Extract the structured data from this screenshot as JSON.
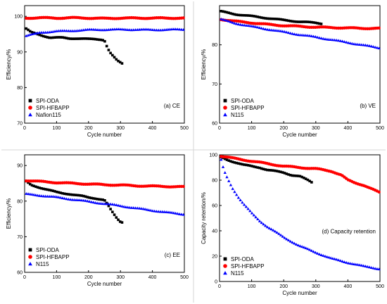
{
  "colors": {
    "series": [
      "#000000",
      "#ff0000",
      "#0000ff"
    ]
  },
  "chart_data": [
    {
      "type": "scatter",
      "annotation": "(a) CE",
      "xlabel": "Cycle number",
      "ylabel": "Efficiency/%",
      "xlim": [
        0,
        500
      ],
      "ylim": [
        70,
        103
      ],
      "xticks": [
        0,
        100,
        200,
        300,
        400,
        500
      ],
      "yticks": [
        70,
        80,
        90,
        100
      ],
      "legend_position": "bottom-left",
      "series": [
        {
          "name": "SPI-ODA",
          "marker": "square",
          "x": [
            5,
            20,
            40,
            60,
            80,
            100,
            120,
            140,
            160,
            180,
            200,
            220,
            240,
            250,
            260,
            270,
            280,
            290,
            300,
            310
          ],
          "y": [
            96.5,
            95.5,
            95,
            94.5,
            94,
            94,
            94,
            93.8,
            93.8,
            93.7,
            93.6,
            93.6,
            93.5,
            93.3,
            91,
            89.5,
            88.5,
            87.5,
            87,
            86.5
          ]
        },
        {
          "name": "SPI-HFBAPP",
          "marker": "circle",
          "x": [
            5,
            50,
            100,
            150,
            200,
            250,
            300,
            350,
            400,
            450,
            500
          ],
          "y": [
            99.5,
            99.6,
            99.5,
            99.6,
            99.5,
            99.4,
            99.5,
            99.5,
            99.5,
            99.5,
            99.5
          ]
        },
        {
          "name": "Nafion115",
          "marker": "triangle",
          "x": [
            5,
            50,
            100,
            150,
            200,
            250,
            300,
            350,
            400,
            450,
            500
          ],
          "y": [
            94.5,
            95.5,
            95.8,
            96,
            96.2,
            96.3,
            96.3,
            96.3,
            96.2,
            96.3,
            96.3
          ]
        }
      ]
    },
    {
      "type": "scatter",
      "annotation": "(b) VE",
      "xlabel": "Cycle number",
      "ylabel": "Efficiency/%",
      "xlim": [
        0,
        500
      ],
      "ylim": [
        60,
        90
      ],
      "xticks": [
        0,
        100,
        200,
        300,
        400,
        500
      ],
      "yticks": [
        60,
        70,
        80
      ],
      "legend_position": "bottom-left",
      "series": [
        {
          "name": "SPI-ODA",
          "marker": "square",
          "x": [
            5,
            50,
            100,
            150,
            200,
            250,
            300,
            320
          ],
          "y": [
            88.5,
            87.8,
            87.3,
            86.8,
            86.3,
            85.9,
            85.6,
            85.4
          ]
        },
        {
          "name": "SPI-HFBAPP",
          "marker": "circle",
          "x": [
            5,
            50,
            100,
            150,
            200,
            250,
            300,
            350,
            400,
            450,
            500
          ],
          "y": [
            86.5,
            86,
            85.6,
            85.2,
            84.9,
            84.7,
            84.5,
            84.4,
            84.3,
            84.2,
            84.2
          ]
        },
        {
          "name": "N115",
          "marker": "triangle",
          "x": [
            5,
            50,
            100,
            150,
            200,
            250,
            300,
            350,
            400,
            450,
            500
          ],
          "y": [
            86.5,
            85.5,
            84.7,
            84,
            83.3,
            82.6,
            82,
            81.3,
            80.6,
            79.9,
            79.2
          ]
        }
      ]
    },
    {
      "type": "scatter",
      "annotation": "(c) EE",
      "xlabel": "Cycle number",
      "ylabel": "Efficiency/%",
      "xlim": [
        0,
        500
      ],
      "ylim": [
        60,
        93
      ],
      "xticks": [
        0,
        100,
        200,
        300,
        400,
        500
      ],
      "yticks": [
        60,
        70,
        80,
        90
      ],
      "legend_position": "bottom-left",
      "series": [
        {
          "name": "SPI-ODA",
          "marker": "square",
          "x": [
            5,
            20,
            40,
            60,
            80,
            100,
            120,
            140,
            160,
            180,
            200,
            220,
            240,
            250,
            260,
            270,
            280,
            290,
            300,
            310
          ],
          "y": [
            85.5,
            84.5,
            84,
            83.5,
            83,
            82.5,
            82.2,
            82,
            81.7,
            81.4,
            81,
            80.8,
            80.5,
            80.3,
            79,
            77.5,
            76.2,
            75,
            74.2,
            74
          ]
        },
        {
          "name": "SPI-HFBAPP",
          "marker": "circle",
          "x": [
            5,
            50,
            100,
            150,
            200,
            250,
            300,
            350,
            400,
            450,
            500
          ],
          "y": [
            85.8,
            85.5,
            85.2,
            85,
            84.8,
            84.6,
            84.5,
            84.3,
            84.2,
            84.1,
            84
          ]
        },
        {
          "name": "N115",
          "marker": "triangle",
          "x": [
            5,
            50,
            100,
            150,
            200,
            250,
            300,
            350,
            400,
            450,
            500
          ],
          "y": [
            82,
            81.6,
            81.1,
            80.5,
            79.9,
            79.3,
            78.7,
            78,
            77.4,
            76.8,
            76.3
          ]
        }
      ]
    },
    {
      "type": "scatter",
      "annotation": "(d) Capacity retention",
      "xlabel": "Cycle number",
      "ylabel": "Capacity retention/%",
      "xlim": [
        0,
        500
      ],
      "ylim": [
        0,
        100
      ],
      "xticks": [
        0,
        100,
        200,
        300,
        400,
        500
      ],
      "yticks": [
        0,
        20,
        40,
        60,
        80,
        100
      ],
      "legend_position": "bottom-left",
      "series": [
        {
          "name": "SPI-ODA",
          "marker": "square",
          "x": [
            5,
            25,
            50,
            75,
            100,
            125,
            150,
            175,
            200,
            225,
            250,
            275,
            290
          ],
          "y": [
            98,
            96,
            94,
            92,
            91,
            90,
            88,
            87,
            86,
            84,
            83,
            80,
            78
          ]
        },
        {
          "name": "SPI-HFBAPP",
          "marker": "circle",
          "x": [
            5,
            50,
            100,
            150,
            200,
            250,
            300,
            350,
            380,
            400,
            420,
            450,
            475,
            500
          ],
          "y": [
            99,
            97,
            95,
            93,
            91,
            90,
            89,
            87,
            84,
            80,
            78,
            76,
            73,
            70
          ]
        },
        {
          "name": "N115",
          "marker": "triangle",
          "x": [
            5,
            10,
            15,
            20,
            30,
            40,
            50,
            60,
            75,
            100,
            125,
            150,
            175,
            200,
            250,
            300,
            350,
            400,
            450,
            500
          ],
          "y": [
            96,
            91,
            87,
            84,
            79,
            74,
            70,
            66,
            61,
            54,
            48,
            43,
            39,
            35,
            28,
            23,
            18,
            15,
            12,
            10
          ]
        }
      ]
    }
  ]
}
